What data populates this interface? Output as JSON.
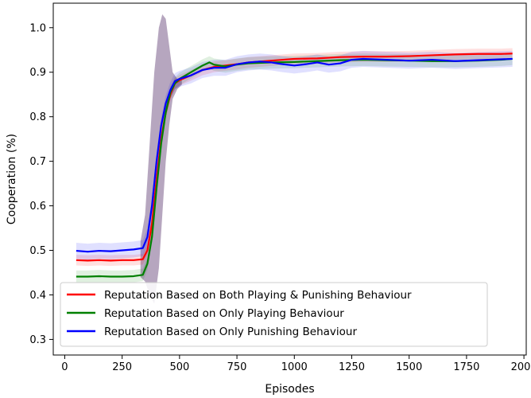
{
  "chart_data": {
    "type": "line",
    "title": "",
    "xlabel": "Episodes",
    "ylabel": "Cooperation (%)",
    "xlim": [
      -50,
      2010
    ],
    "ylim": [
      0.265,
      1.055
    ],
    "xticks": [
      0,
      250,
      500,
      750,
      1000,
      1250,
      1500,
      1750,
      2000
    ],
    "xtick_labels": [
      "0",
      "250",
      "500",
      "750",
      "1000",
      "1250",
      "1500",
      "1750",
      "2000"
    ],
    "yticks": [
      0.3,
      0.4,
      0.5,
      0.6,
      0.7,
      0.8,
      0.9,
      1.0
    ],
    "ytick_labels": [
      "0.3",
      "0.4",
      "0.5",
      "0.6",
      "0.7",
      "0.8",
      "0.9",
      "1.0"
    ],
    "grid": false,
    "legend_position": "lower-left",
    "series": [
      {
        "name": "Reputation Based on Both Playing & Punishing Behaviour",
        "color": "#ff0000",
        "x": [
          50,
          100,
          150,
          200,
          250,
          300,
          340,
          360,
          380,
          400,
          420,
          440,
          460,
          480,
          500,
          550,
          600,
          650,
          700,
          750,
          800,
          900,
          1000,
          1100,
          1200,
          1300,
          1400,
          1500,
          1600,
          1700,
          1800,
          1900,
          1950
        ],
        "y": [
          0.478,
          0.477,
          0.478,
          0.477,
          0.478,
          0.478,
          0.48,
          0.5,
          0.56,
          0.66,
          0.75,
          0.81,
          0.85,
          0.875,
          0.882,
          0.893,
          0.905,
          0.912,
          0.915,
          0.918,
          0.922,
          0.926,
          0.93,
          0.931,
          0.934,
          0.935,
          0.935,
          0.936,
          0.938,
          0.94,
          0.941,
          0.941,
          0.942
        ],
        "band": 0.012
      },
      {
        "name": "Reputation Based on Only Playing Behaviour",
        "color": "#008000",
        "x": [
          50,
          100,
          150,
          200,
          250,
          300,
          340,
          360,
          380,
          400,
          420,
          440,
          460,
          480,
          500,
          550,
          600,
          630,
          650,
          700,
          750,
          800,
          900,
          1000,
          1100,
          1200,
          1300,
          1400,
          1500,
          1600,
          1700,
          1800,
          1900,
          1950
        ],
        "y": [
          0.441,
          0.441,
          0.442,
          0.441,
          0.441,
          0.442,
          0.445,
          0.47,
          0.53,
          0.64,
          0.74,
          0.81,
          0.855,
          0.875,
          0.885,
          0.9,
          0.915,
          0.922,
          0.917,
          0.913,
          0.917,
          0.92,
          0.922,
          0.923,
          0.925,
          0.927,
          0.928,
          0.927,
          0.926,
          0.925,
          0.925,
          0.926,
          0.928,
          0.93
        ],
        "band": 0.014
      },
      {
        "name": "Reputation Based on Only Punishing Behaviour",
        "color": "#0000ff",
        "x": [
          50,
          100,
          150,
          200,
          250,
          300,
          340,
          360,
          380,
          400,
          420,
          440,
          460,
          480,
          500,
          550,
          600,
          650,
          700,
          750,
          800,
          850,
          900,
          950,
          1000,
          1050,
          1100,
          1150,
          1200,
          1250,
          1300,
          1400,
          1500,
          1600,
          1700,
          1800,
          1900,
          1950
        ],
        "y": [
          0.499,
          0.497,
          0.499,
          0.498,
          0.5,
          0.502,
          0.505,
          0.53,
          0.6,
          0.7,
          0.78,
          0.83,
          0.86,
          0.88,
          0.885,
          0.893,
          0.905,
          0.91,
          0.91,
          0.918,
          0.922,
          0.924,
          0.922,
          0.918,
          0.915,
          0.918,
          0.922,
          0.917,
          0.92,
          0.928,
          0.93,
          0.928,
          0.926,
          0.928,
          0.925,
          0.927,
          0.929,
          0.93
        ],
        "band": 0.018
      }
    ],
    "spike_band": {
      "color": "#7a5c8a",
      "x": [
        330,
        350,
        370,
        390,
        410,
        425,
        440,
        455,
        470,
        490,
        510
      ],
      "upper": [
        0.52,
        0.58,
        0.74,
        0.9,
        1.0,
        1.03,
        1.02,
        0.96,
        0.9,
        0.885,
        0.89
      ],
      "lower": [
        0.44,
        0.43,
        0.4,
        0.38,
        0.46,
        0.58,
        0.7,
        0.78,
        0.84,
        0.862,
        0.872
      ]
    }
  }
}
